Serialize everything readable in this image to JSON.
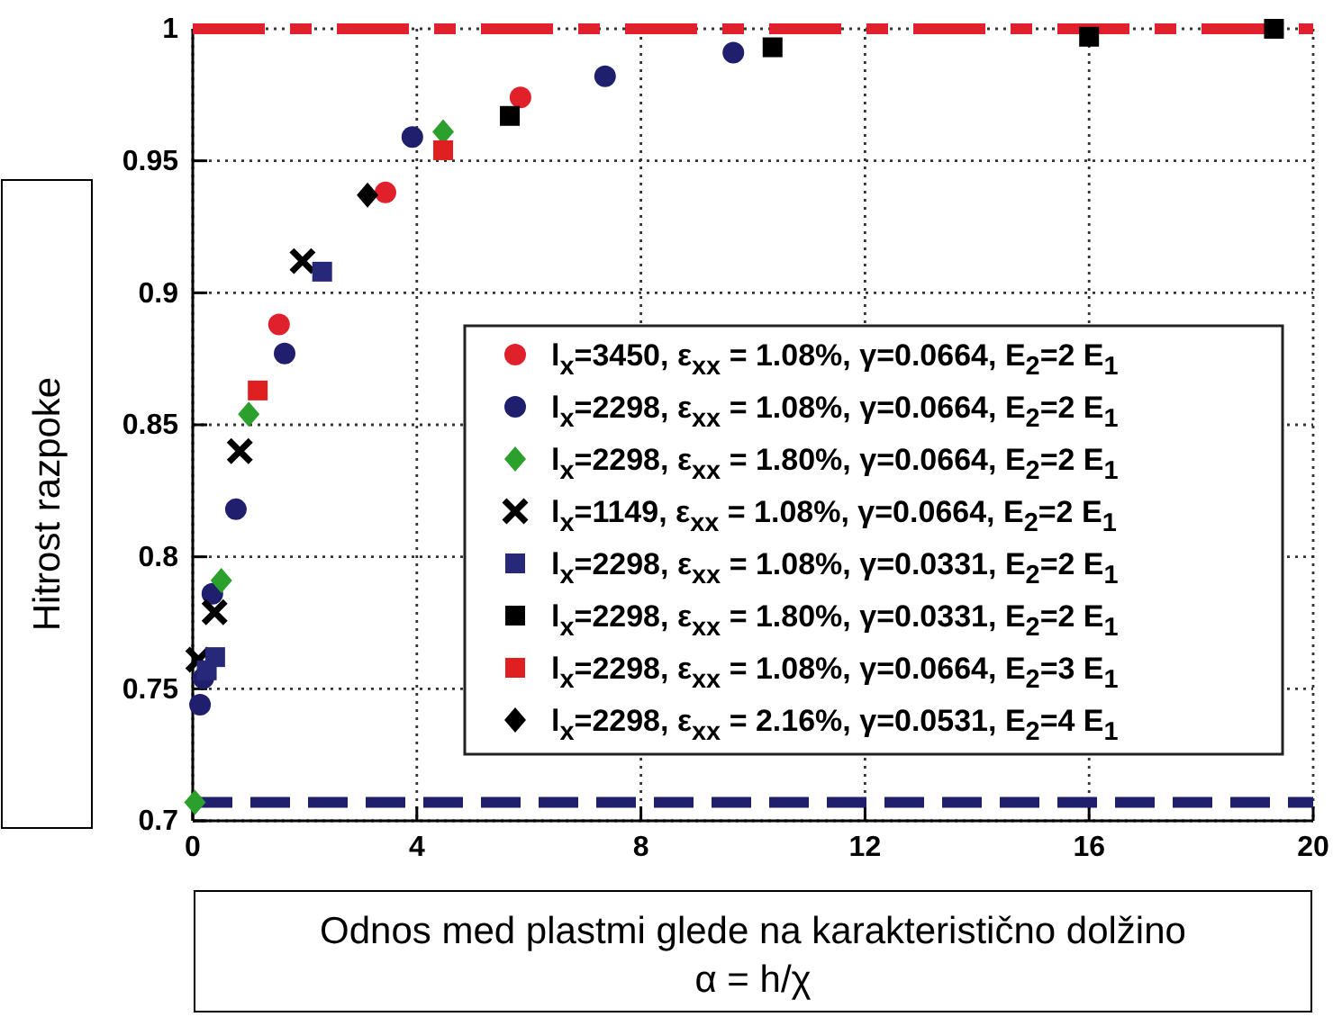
{
  "chart_data": {
    "type": "scatter",
    "xlabel": "Odnos med plastmi glede na karakteristično dolžino α = h/χ",
    "ylabel": "Hitrost razpoke",
    "xlim": [
      0,
      20
    ],
    "xticks": [
      0,
      4,
      8,
      12,
      16,
      20
    ],
    "ylim": [
      0.7,
      1
    ],
    "yticks": [
      0.7,
      0.75,
      0.8,
      0.85,
      0.9,
      0.95,
      1
    ],
    "grid": true,
    "legend": "bottom right",
    "ref_lines": [
      {
        "axis": "y",
        "value": 1,
        "color": "#e0202a",
        "line_style": "dashdot"
      },
      {
        "axis": "y",
        "value": 0.707,
        "color": "#1f1f6e",
        "line_style": "dashed"
      }
    ],
    "series": [
      {
        "name": "l$_{x}$=3450,  ε$_{xx}$ = 1.08%, γ=0.0664, E$_{2}$=2 E$_{1}$",
        "color": "#e0202a",
        "marker": "circle",
        "x": [
          1.54,
          3.44,
          5.85
        ],
        "values": [
          0.888,
          0.938,
          0.974
        ]
      },
      {
        "name": "l$_{x}$=2298,  ε$_{xx}$ = 1.08%, γ=0.0664, E$_{2}$=2 E$_{1}$",
        "color": "#1f1f6e",
        "marker": "circle",
        "x": [
          0.13,
          0.19,
          0.35,
          0.77,
          1.64,
          3.92,
          7.36,
          9.65
        ],
        "values": [
          0.744,
          0.754,
          0.786,
          0.818,
          0.877,
          0.959,
          0.982,
          0.991
        ]
      },
      {
        "name": "l$_{x}$=2298,  ε$_{xx}$ = 1.80%, γ=0.0664, E$_{2}$=2 E$_{1}$",
        "color": "#2ca02c",
        "marker": "diamond",
        "x": [
          0.04,
          0.51,
          1.0,
          4.47
        ],
        "values": [
          0.707,
          0.791,
          0.854,
          0.961
        ]
      },
      {
        "name": "l$_{x}$=1149,  ε$_{xx}$ = 1.08%, γ=0.0664, E$_{2}$=2 E$_{1}$",
        "color": "#000000",
        "marker": "cross",
        "x": [
          0.1,
          0.39,
          0.84,
          1.96
        ],
        "values": [
          0.761,
          0.779,
          0.84,
          0.912
        ]
      },
      {
        "name": "l$_{x}$=2298,  ε$_{xx}$ = 1.08%, γ=0.0331, E$_{2}$=2 E$_{1}$",
        "color": "#27287a",
        "marker": "square",
        "x": [
          0.25,
          0.4,
          2.31
        ],
        "values": [
          0.757,
          0.762,
          0.908
        ]
      },
      {
        "name": "l$_{x}$=2298,  ε$_{xx}$ = 1.80%, γ=0.0331, E$_{2}$=2 E$_{1}$",
        "color": "#000000",
        "marker": "square",
        "x": [
          5.66,
          10.35,
          16.0,
          19.3
        ],
        "values": [
          0.967,
          0.993,
          0.997,
          1.0
        ]
      },
      {
        "name": "l$_{x}$=2298,  ε$_{xx}$ = 1.08%, γ=0.0664, E$_{2}$=3 E$_{1}$",
        "color": "#e02020",
        "marker": "square",
        "x": [
          1.16,
          4.47
        ],
        "values": [
          0.863,
          0.954
        ]
      },
      {
        "name": "l$_{x}$=2298,  ε$_{xx}$ = 2.16%, γ=0.0531, E$_{2}$=4 E$_{1}$",
        "color": "#000000",
        "marker": "diamond",
        "x": [
          3.12
        ],
        "values": [
          0.937
        ]
      }
    ]
  }
}
